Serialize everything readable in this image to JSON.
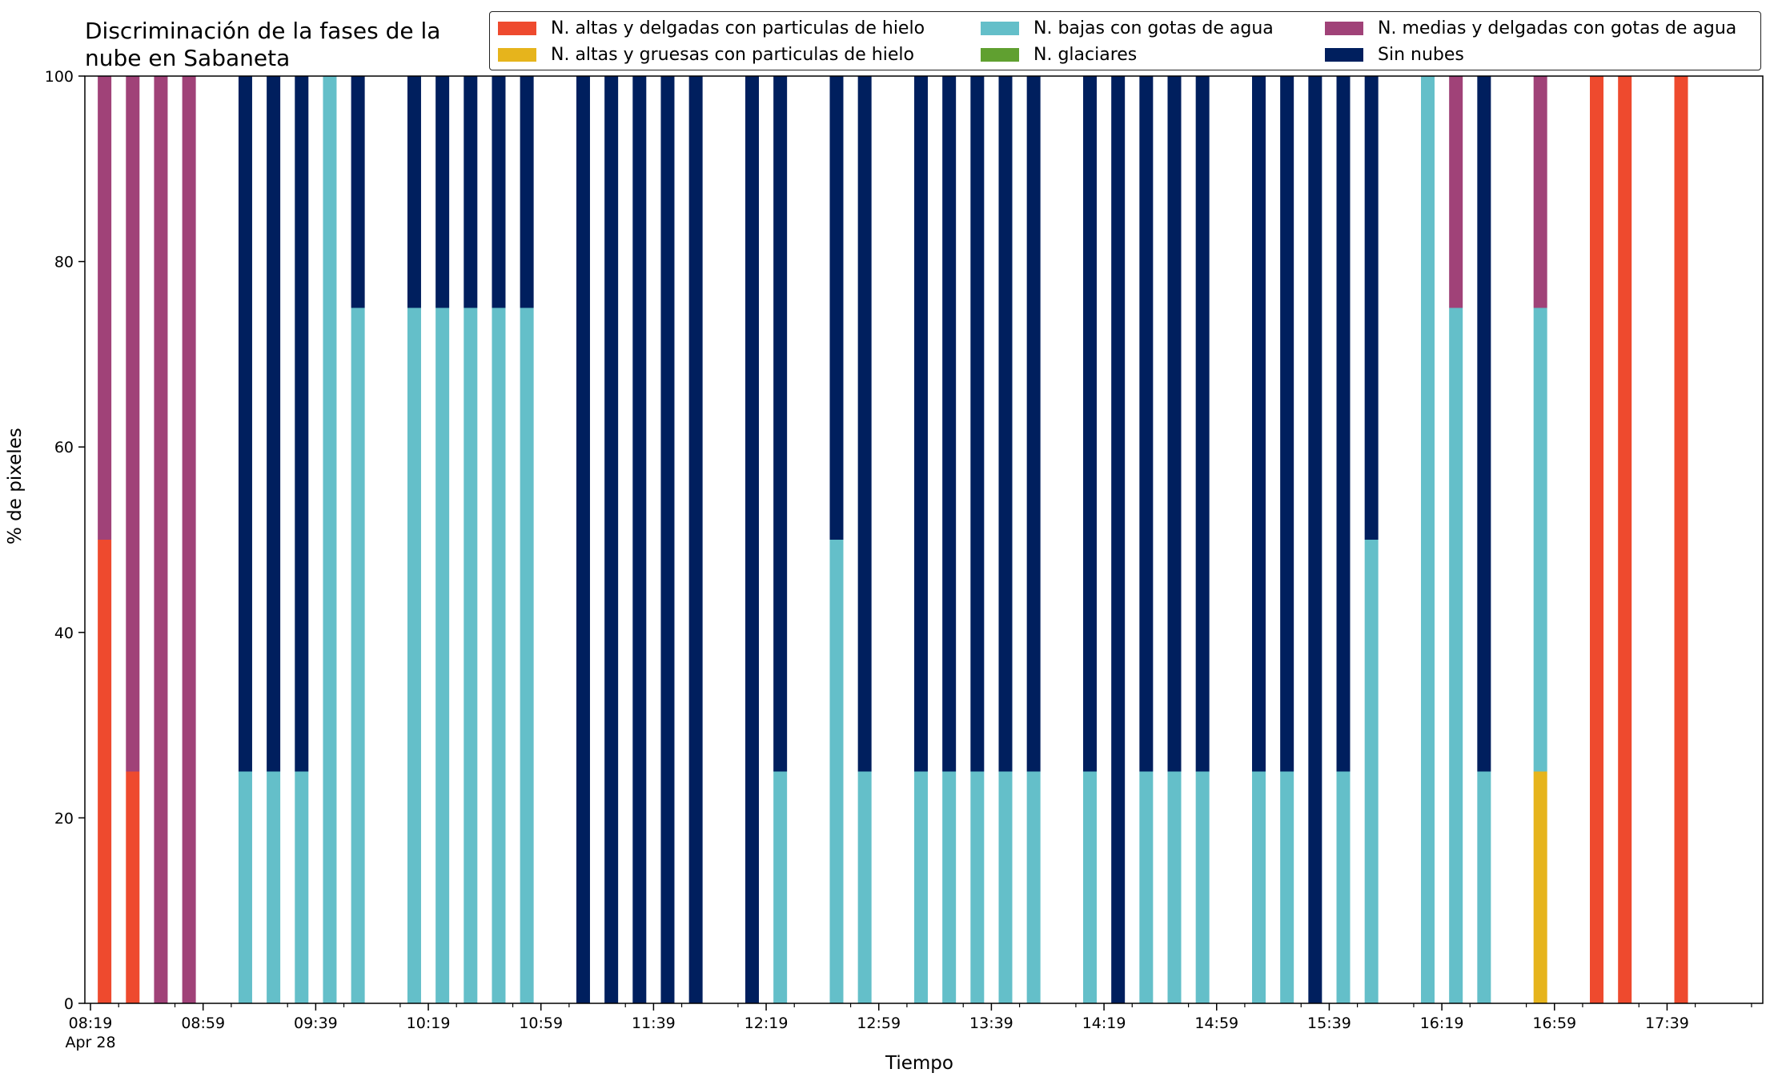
{
  "chart_data": {
    "type": "bar",
    "stacked": true,
    "title": "Discriminación de la fases de la nube en Sabaneta",
    "xlabel": "Tiempo",
    "ylabel": "% de pixeles",
    "ylim": [
      0,
      100
    ],
    "yticks": [
      0,
      20,
      40,
      60,
      80,
      100
    ],
    "xlim_minutes": [
      497,
      1093
    ],
    "xtick_labels": [
      {
        "t": 499,
        "label": "08:19",
        "sub": "Apr 28"
      },
      {
        "t": 539,
        "label": "08:59"
      },
      {
        "t": 579,
        "label": "09:39"
      },
      {
        "t": 619,
        "label": "10:19"
      },
      {
        "t": 659,
        "label": "10:59"
      },
      {
        "t": 699,
        "label": "11:39"
      },
      {
        "t": 739,
        "label": "12:19"
      },
      {
        "t": 779,
        "label": "12:59"
      },
      {
        "t": 819,
        "label": "13:39"
      },
      {
        "t": 859,
        "label": "14:19"
      },
      {
        "t": 899,
        "label": "14:59"
      },
      {
        "t": 939,
        "label": "15:39"
      },
      {
        "t": 979,
        "label": "16:19"
      },
      {
        "t": 1019,
        "label": "16:59"
      },
      {
        "t": 1059,
        "label": "17:39"
      }
    ],
    "grid": false,
    "legend": "top-right",
    "series_colors": [
      "#ee4a2e",
      "#e6b41c",
      "#64bfc9",
      "#60a030",
      "#a04278",
      "#001f5e"
    ],
    "legend_entries": [
      {
        "name": "N. altas y delgadas con particulas de hielo",
        "color": "#ee4a2e"
      },
      {
        "name": "N. bajas con gotas de agua",
        "color": "#64bfc9"
      },
      {
        "name": "N. medias y delgadas con gotas de agua",
        "color": "#a04278"
      },
      {
        "name": "N. altas y gruesas con particulas de hielo",
        "color": "#e6b41c"
      },
      {
        "name": "N. glaciares",
        "color": "#60a030"
      },
      {
        "name": "Sin nubes",
        "color": "#001f5e"
      }
    ],
    "series_order": [
      "N. altas y delgadas con particulas de hielo",
      "N. altas y gruesas con particulas de hielo",
      "N. bajas con gotas de agua",
      "N. glaciares",
      "N. medias y delgadas con gotas de agua",
      "Sin nubes"
    ],
    "bars": [
      {
        "t": "08:24",
        "values": [
          50,
          0,
          0,
          0,
          50,
          0
        ]
      },
      {
        "t": "08:34",
        "values": [
          25,
          0,
          0,
          0,
          75,
          0
        ]
      },
      {
        "t": "08:44",
        "values": [
          0,
          0,
          0,
          0,
          100,
          0
        ]
      },
      {
        "t": "08:54",
        "values": [
          0,
          0,
          0,
          0,
          100,
          0
        ]
      },
      {
        "t": "09:14",
        "values": [
          0,
          0,
          25,
          0,
          0,
          75
        ]
      },
      {
        "t": "09:24",
        "values": [
          0,
          0,
          25,
          0,
          0,
          75
        ]
      },
      {
        "t": "09:34",
        "values": [
          0,
          0,
          25,
          0,
          0,
          75
        ]
      },
      {
        "t": "09:44",
        "values": [
          0,
          0,
          100,
          0,
          0,
          0
        ]
      },
      {
        "t": "09:54",
        "values": [
          0,
          0,
          75,
          0,
          0,
          25
        ]
      },
      {
        "t": "10:14",
        "values": [
          0,
          0,
          75,
          0,
          0,
          25
        ]
      },
      {
        "t": "10:24",
        "values": [
          0,
          0,
          75,
          0,
          0,
          25
        ]
      },
      {
        "t": "10:34",
        "values": [
          0,
          0,
          75,
          0,
          0,
          25
        ]
      },
      {
        "t": "10:44",
        "values": [
          0,
          0,
          75,
          0,
          0,
          25
        ]
      },
      {
        "t": "10:54",
        "values": [
          0,
          0,
          75,
          0,
          0,
          25
        ]
      },
      {
        "t": "11:14",
        "values": [
          0,
          0,
          0,
          0,
          0,
          100
        ]
      },
      {
        "t": "11:24",
        "values": [
          0,
          0,
          0,
          0,
          0,
          100
        ]
      },
      {
        "t": "11:34",
        "values": [
          0,
          0,
          0,
          0,
          0,
          100
        ]
      },
      {
        "t": "11:44",
        "values": [
          0,
          0,
          0,
          0,
          0,
          100
        ]
      },
      {
        "t": "11:54",
        "values": [
          0,
          0,
          0,
          0,
          0,
          100
        ]
      },
      {
        "t": "12:14",
        "values": [
          0,
          0,
          0,
          0,
          0,
          100
        ]
      },
      {
        "t": "12:24",
        "values": [
          0,
          0,
          25,
          0,
          0,
          75
        ]
      },
      {
        "t": "12:44",
        "values": [
          0,
          0,
          50,
          0,
          0,
          50
        ]
      },
      {
        "t": "12:54",
        "values": [
          0,
          0,
          25,
          0,
          0,
          75
        ]
      },
      {
        "t": "13:14",
        "values": [
          0,
          0,
          25,
          0,
          0,
          75
        ]
      },
      {
        "t": "13:24",
        "values": [
          0,
          0,
          25,
          0,
          0,
          75
        ]
      },
      {
        "t": "13:34",
        "values": [
          0,
          0,
          25,
          0,
          0,
          75
        ]
      },
      {
        "t": "13:44",
        "values": [
          0,
          0,
          25,
          0,
          0,
          75
        ]
      },
      {
        "t": "13:54",
        "values": [
          0,
          0,
          25,
          0,
          0,
          75
        ]
      },
      {
        "t": "14:14",
        "values": [
          0,
          0,
          25,
          0,
          0,
          75
        ]
      },
      {
        "t": "14:24",
        "values": [
          0,
          0,
          0,
          0,
          0,
          100
        ]
      },
      {
        "t": "14:34",
        "values": [
          0,
          0,
          25,
          0,
          0,
          75
        ]
      },
      {
        "t": "14:44",
        "values": [
          0,
          0,
          25,
          0,
          0,
          75
        ]
      },
      {
        "t": "14:54",
        "values": [
          0,
          0,
          25,
          0,
          0,
          75
        ]
      },
      {
        "t": "15:14",
        "values": [
          0,
          0,
          25,
          0,
          0,
          75
        ]
      },
      {
        "t": "15:24",
        "values": [
          0,
          0,
          25,
          0,
          0,
          75
        ]
      },
      {
        "t": "15:34",
        "values": [
          0,
          0,
          0,
          0,
          0,
          100
        ]
      },
      {
        "t": "15:44",
        "values": [
          0,
          0,
          25,
          0,
          0,
          75
        ]
      },
      {
        "t": "15:54",
        "values": [
          0,
          0,
          50,
          0,
          0,
          50
        ]
      },
      {
        "t": "16:14",
        "values": [
          0,
          0,
          100,
          0,
          0,
          0
        ]
      },
      {
        "t": "16:24",
        "values": [
          0,
          0,
          75,
          0,
          25,
          0
        ]
      },
      {
        "t": "16:34",
        "values": [
          0,
          0,
          25,
          0,
          0,
          75
        ]
      },
      {
        "t": "16:54",
        "values": [
          0,
          25,
          50,
          0,
          25,
          0
        ]
      },
      {
        "t": "17:14",
        "values": [
          100,
          0,
          0,
          0,
          0,
          0
        ]
      },
      {
        "t": "17:24",
        "values": [
          100,
          0,
          0,
          0,
          0,
          0
        ]
      },
      {
        "t": "17:44",
        "values": [
          100,
          0,
          0,
          0,
          0,
          0
        ]
      }
    ]
  }
}
